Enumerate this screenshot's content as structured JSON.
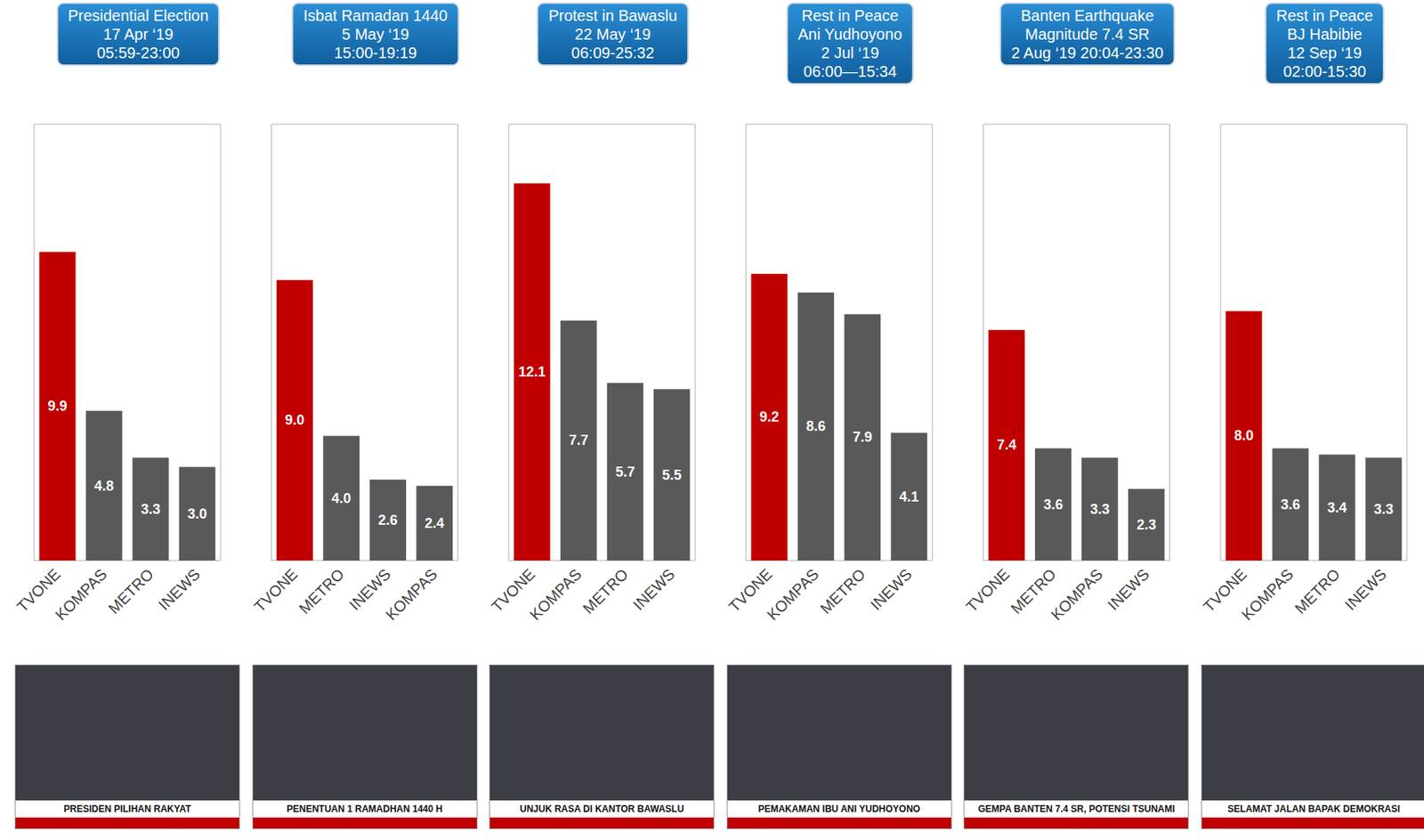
{
  "chart_data": [
    {
      "type": "bar",
      "title": "Presidential Election\n17 Apr ‘19\n05:59-23:00",
      "categories": [
        "TVONE",
        "KOMPAS",
        "METRO",
        "INEWS"
      ],
      "values": [
        9.9,
        4.8,
        3.3,
        3.0
      ],
      "value_labels": [
        "9.9",
        "4.8",
        "3.3",
        "3.0"
      ],
      "colors": [
        "#c00000",
        "#595959",
        "#595959",
        "#595959"
      ],
      "ylim": [
        0,
        14
      ],
      "data_labels": true,
      "tick_labels": "x",
      "grid": false,
      "annotations": [
        "PRESIDEN PILIHAN RAKYAT"
      ]
    },
    {
      "type": "bar",
      "title": "Isbat Ramadan 1440\n5 May ‘19\n15:00-19:19",
      "categories": [
        "TVONE",
        "METRO",
        "INEWS",
        "KOMPAS"
      ],
      "values": [
        9.0,
        4.0,
        2.6,
        2.4
      ],
      "value_labels": [
        "9.0",
        "4.0",
        "2.6",
        "2.4"
      ],
      "colors": [
        "#c00000",
        "#595959",
        "#595959",
        "#595959"
      ],
      "ylim": [
        0,
        14
      ],
      "data_labels": true,
      "tick_labels": "x",
      "grid": false,
      "annotations": [
        "PENENTUAN 1 RAMADHAN 1440 H"
      ]
    },
    {
      "type": "bar",
      "title": "Protest in Bawaslu\n22 May ‘19\n06:09-25:32",
      "categories": [
        "TVONE",
        "KOMPAS",
        "METRO",
        "INEWS"
      ],
      "values": [
        12.1,
        7.7,
        5.7,
        5.5
      ],
      "value_labels": [
        "12.1",
        "7.7",
        "5.7",
        "5.5"
      ],
      "colors": [
        "#c00000",
        "#595959",
        "#595959",
        "#595959"
      ],
      "ylim": [
        0,
        14
      ],
      "data_labels": true,
      "tick_labels": "x",
      "grid": false,
      "annotations": [
        "UNJUK RASA DI KANTOR BAWASLU"
      ]
    },
    {
      "type": "bar",
      "title": "Rest in Peace\nAni Yudhoyono\n2 Jul ‘19\n06:00—15:34",
      "categories": [
        "TVONE",
        "KOMPAS",
        "METRO",
        "INEWS"
      ],
      "values": [
        9.2,
        8.6,
        7.9,
        4.1
      ],
      "value_labels": [
        "9.2",
        "8.6",
        "7.9",
        "4.1"
      ],
      "colors": [
        "#c00000",
        "#595959",
        "#595959",
        "#595959"
      ],
      "ylim": [
        0,
        14
      ],
      "data_labels": true,
      "tick_labels": "x",
      "grid": false,
      "annotations": [
        "PEMAKAMAN IBU ANI YUDHOYONO"
      ]
    },
    {
      "type": "bar",
      "title": "Banten Earthquake\nMagnitude 7.4 SR\n2 Aug ‘19 20:04-23:30",
      "categories": [
        "TVONE",
        "METRO",
        "KOMPAS",
        "INEWS"
      ],
      "values": [
        7.4,
        3.6,
        3.3,
        2.3
      ],
      "value_labels": [
        "7.4",
        "3.6",
        "3.3",
        "2.3"
      ],
      "colors": [
        "#c00000",
        "#595959",
        "#595959",
        "#595959"
      ],
      "ylim": [
        0,
        14
      ],
      "data_labels": true,
      "tick_labels": "x",
      "grid": false,
      "annotations": [
        "GEMPA BANTEN 7.4 SR, POTENSI TSUNAMI"
      ]
    },
    {
      "type": "bar",
      "title": "Rest in Peace\nBJ Habibie\n12 Sep ‘19\n02:00-15:30",
      "categories": [
        "TVONE",
        "KOMPAS",
        "METRO",
        "INEWS"
      ],
      "values": [
        8.0,
        3.6,
        3.4,
        3.3
      ],
      "value_labels": [
        "8.0",
        "3.6",
        "3.4",
        "3.3"
      ],
      "colors": [
        "#c00000",
        "#595959",
        "#595959",
        "#595959"
      ],
      "ylim": [
        0,
        14
      ],
      "data_labels": true,
      "tick_labels": "x",
      "grid": false,
      "annotations": [
        "SELAMAT JALAN BAPAK DEMOKRASI"
      ]
    }
  ]
}
